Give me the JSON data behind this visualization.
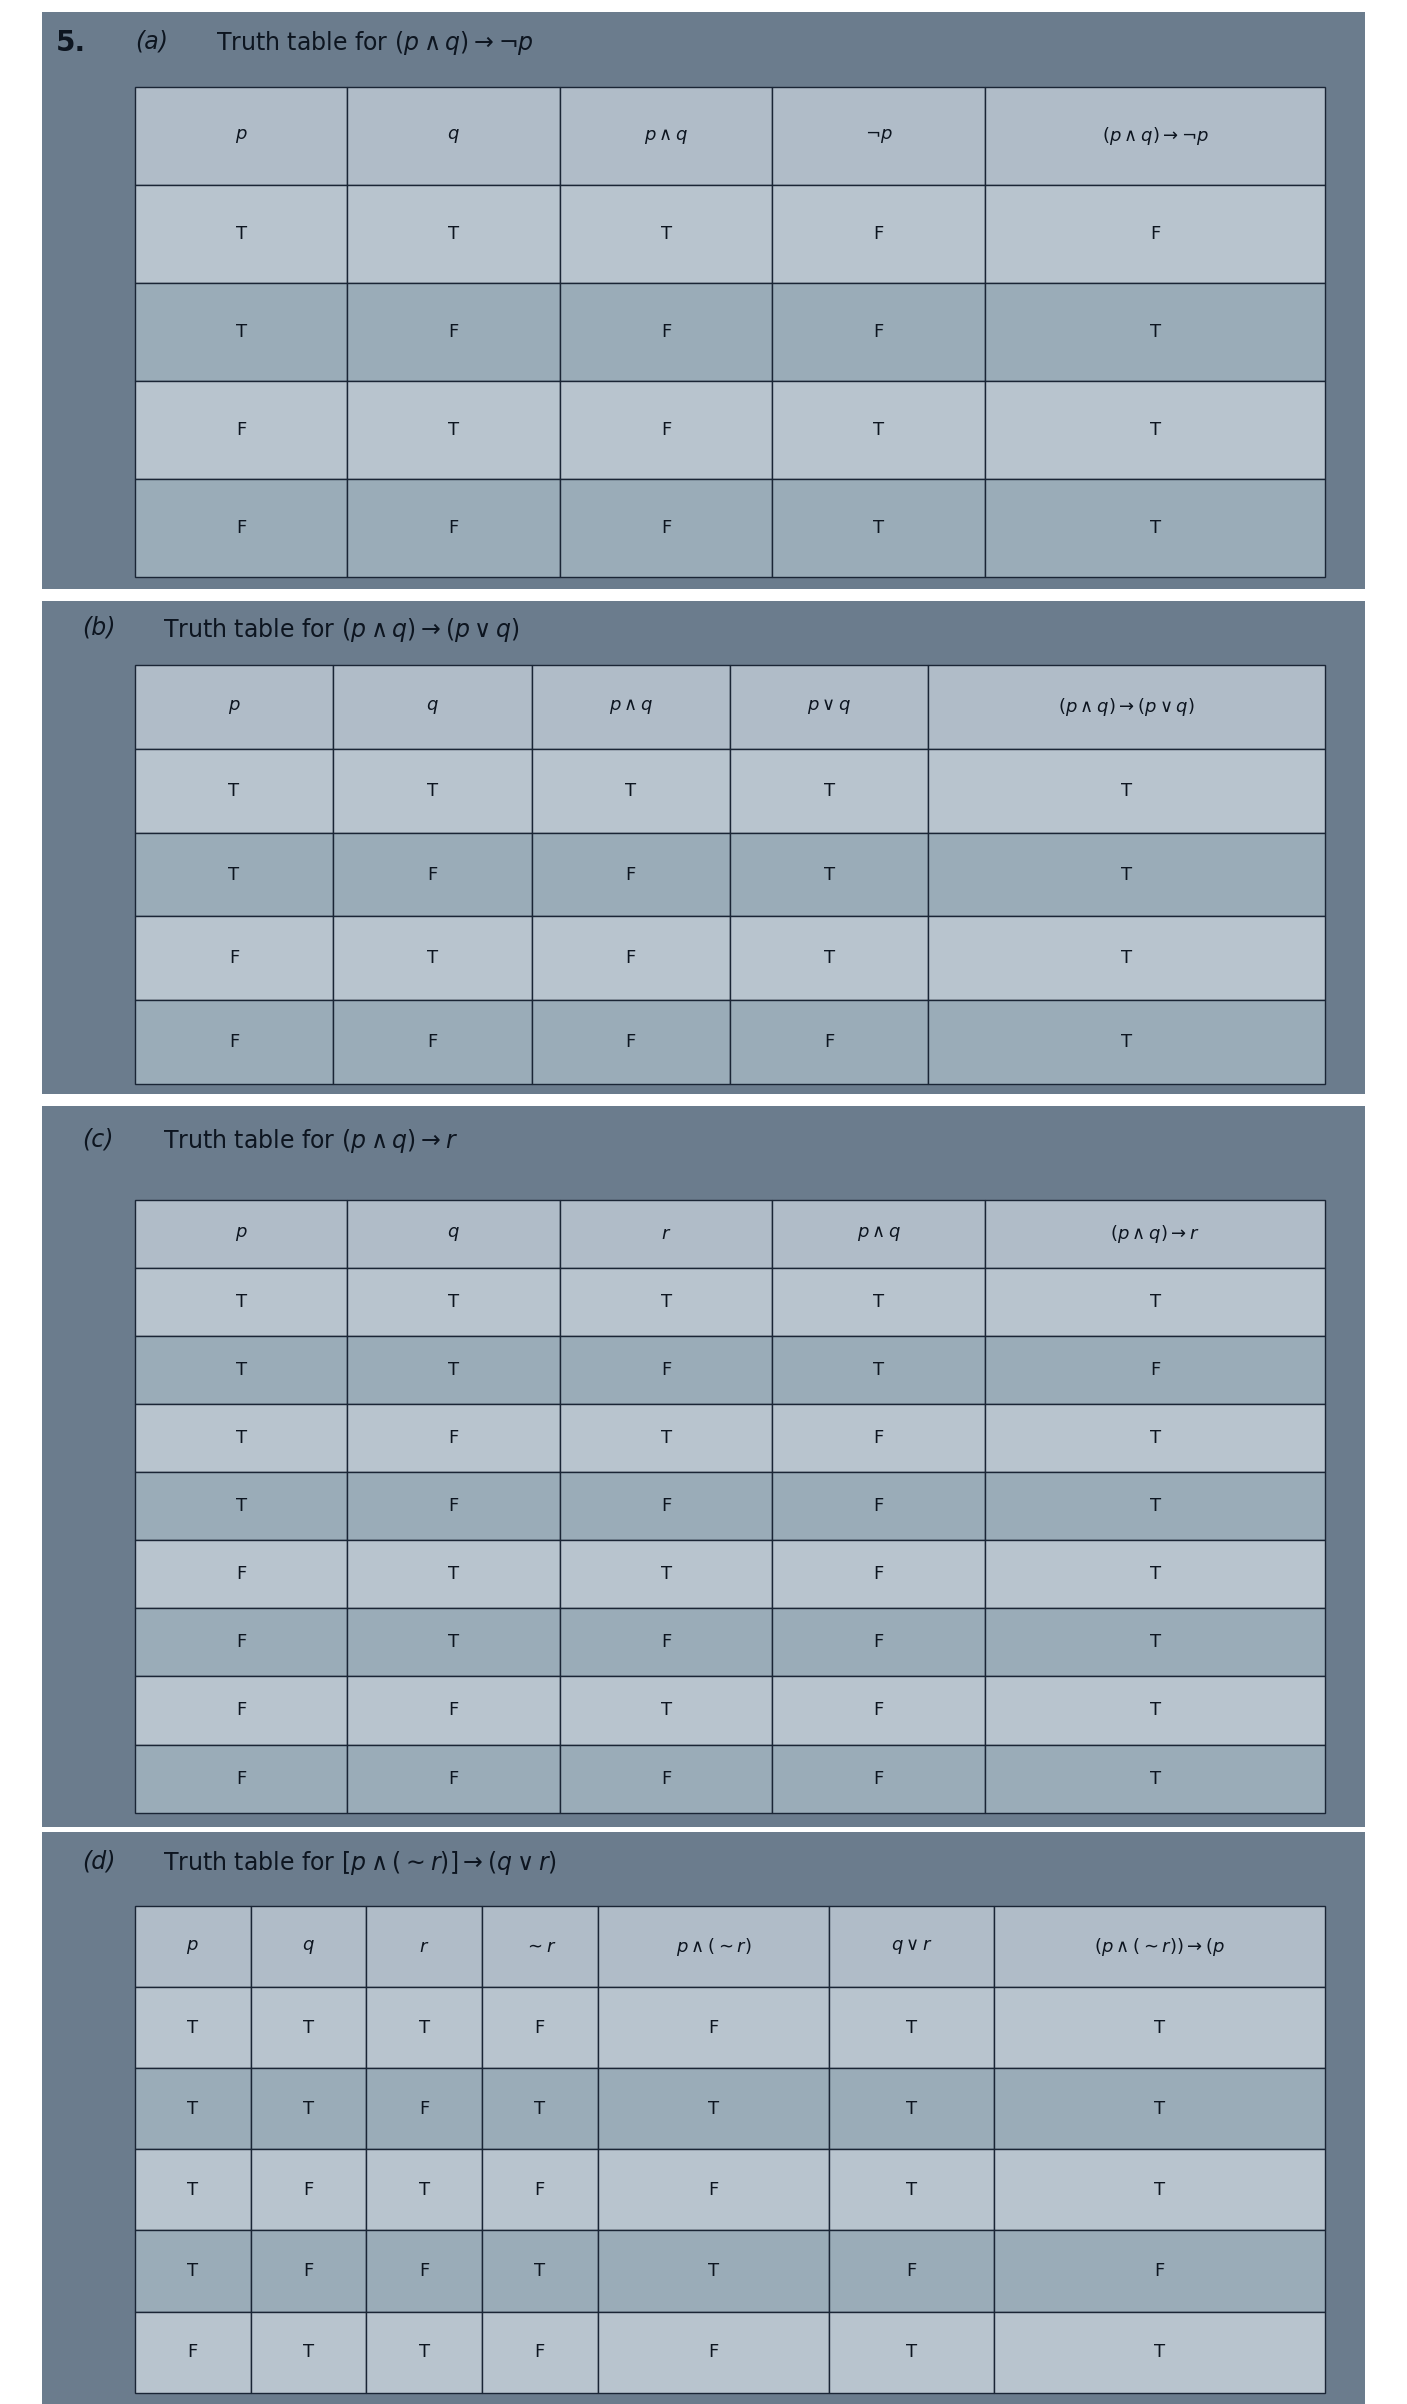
{
  "page_bg": "#6b7c8d",
  "outer_bg": "#7a8c9e",
  "cell_color_light": "#b8c4ce",
  "cell_color_dark": "#9aacb8",
  "border_color": "#1a2535",
  "text_color": "#0d1520",
  "header_bg": "#b0bcc8",
  "tables": [
    {
      "label": "(a)",
      "title_num": "5.",
      "title": "Truth table for $(p \\wedge q) \\rightarrow \\neg p$",
      "headers": [
        "$p$",
        "$q$",
        "$p \\wedge q$",
        "$\\neg p$",
        "$(p \\wedge q) \\rightarrow \\neg p$"
      ],
      "col_widths": [
        1.0,
        1.0,
        1.0,
        1.0,
        1.6
      ],
      "rows": [
        [
          "T",
          "T",
          "T",
          "F",
          "F"
        ],
        [
          "T",
          "F",
          "F",
          "F",
          "T"
        ],
        [
          "F",
          "T",
          "F",
          "T",
          "T"
        ],
        [
          "F",
          "F",
          "F",
          "T",
          "T"
        ]
      ]
    },
    {
      "label": "(b)",
      "title_num": "",
      "title": "Truth table for $(p \\wedge q) \\rightarrow (p \\vee q)$",
      "headers": [
        "$p$",
        "$q$",
        "$p \\wedge q$",
        "$p \\vee q$",
        "$(p \\wedge q) \\rightarrow (p \\vee q)$"
      ],
      "col_widths": [
        1.0,
        1.0,
        1.0,
        1.0,
        2.0
      ],
      "rows": [
        [
          "T",
          "T",
          "T",
          "T",
          "T"
        ],
        [
          "T",
          "F",
          "F",
          "T",
          "T"
        ],
        [
          "F",
          "T",
          "F",
          "T",
          "T"
        ],
        [
          "F",
          "F",
          "F",
          "F",
          "T"
        ]
      ]
    },
    {
      "label": "(c)",
      "title_num": "",
      "title": "Truth table for $(p \\wedge q) \\rightarrow r$",
      "headers": [
        "$p$",
        "$q$",
        "$r$",
        "$p \\wedge q$",
        "$(p \\wedge q) \\rightarrow r$"
      ],
      "col_widths": [
        1.0,
        1.0,
        1.0,
        1.0,
        1.6
      ],
      "rows": [
        [
          "T",
          "T",
          "T",
          "T",
          "T"
        ],
        [
          "T",
          "T",
          "F",
          "T",
          "F"
        ],
        [
          "T",
          "F",
          "T",
          "F",
          "T"
        ],
        [
          "T",
          "F",
          "F",
          "F",
          "T"
        ],
        [
          "F",
          "T",
          "T",
          "F",
          "T"
        ],
        [
          "F",
          "T",
          "F",
          "F",
          "T"
        ],
        [
          "F",
          "F",
          "T",
          "F",
          "T"
        ],
        [
          "F",
          "F",
          "F",
          "F",
          "T"
        ]
      ]
    },
    {
      "label": "(d)",
      "title_num": "",
      "title": "Truth table for $[p \\wedge (\\sim r)] \\rightarrow (q \\vee r)$",
      "headers": [
        "$p$",
        "$q$",
        "$r$",
        "$\\sim r$",
        "$p \\wedge (\\sim r)$",
        "$q \\vee r$",
        "$(p \\wedge (\\sim r)) \\rightarrow (p$"
      ],
      "col_widths": [
        0.7,
        0.7,
        0.7,
        0.7,
        1.4,
        1.0,
        2.0
      ],
      "rows": [
        [
          "T",
          "T",
          "T",
          "F",
          "F",
          "T",
          "T"
        ],
        [
          "T",
          "T",
          "F",
          "T",
          "T",
          "T",
          "T"
        ],
        [
          "T",
          "F",
          "T",
          "F",
          "F",
          "T",
          "T"
        ],
        [
          "T",
          "F",
          "F",
          "T",
          "T",
          "F",
          "F"
        ],
        [
          "F",
          "T",
          "T",
          "F",
          "F",
          "T",
          "T"
        ]
      ]
    }
  ]
}
